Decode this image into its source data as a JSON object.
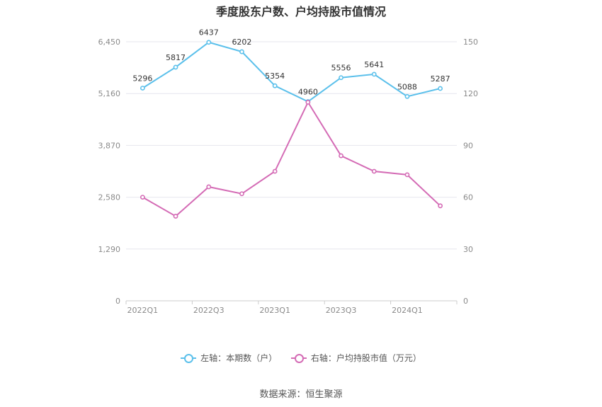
{
  "chart_data": {
    "type": "line",
    "title": "季度股东户数、户均持股市值情况",
    "categories": [
      "2022Q1",
      "2022Q2",
      "2022Q3",
      "2022Q4",
      "2023Q1",
      "2023Q2",
      "2023Q3",
      "2023Q4",
      "2024Q1",
      "2024Q2"
    ],
    "x_tick_labels": [
      "2022Q1",
      "2022Q3",
      "2023Q1",
      "2023Q3",
      "2024Q1"
    ],
    "left_axis": {
      "ylim": [
        0,
        6450
      ],
      "ticks": [
        "0",
        "1,290",
        "2,580",
        "3,870",
        "5,160",
        "6,450"
      ]
    },
    "right_axis": {
      "ylim": [
        0,
        150
      ],
      "ticks": [
        "0",
        "30",
        "60",
        "90",
        "120",
        "150"
      ]
    },
    "grid": true,
    "legend_position": "bottom",
    "series": [
      {
        "name": "左轴：本期数（户）",
        "axis": "left",
        "color": "#5bc0eb",
        "values": [
          5296,
          5817,
          6437,
          6202,
          5354,
          4960,
          5556,
          5641,
          5088,
          5287
        ],
        "labels": [
          "5296",
          "5817",
          "6437",
          "6202",
          "5354",
          "4960",
          "5556",
          "5641",
          "5088",
          "5287"
        ]
      },
      {
        "name": "右轴：户均持股市值（万元）",
        "axis": "right",
        "color": "#d46bb5",
        "values": [
          60,
          49,
          66,
          62,
          75,
          115,
          84,
          75,
          73,
          55
        ]
      }
    ]
  },
  "source": "数据来源：恒生聚源"
}
